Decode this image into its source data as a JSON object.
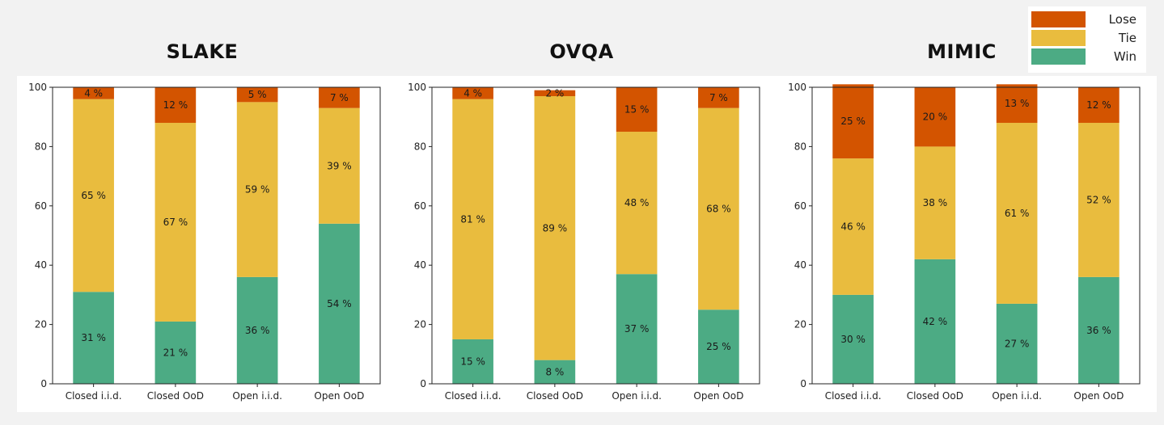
{
  "colors": {
    "lose": "#d35400",
    "tie": "#e9bc3e",
    "win": "#4cab84"
  },
  "legend": {
    "items": [
      {
        "key": "lose",
        "label": "Lose"
      },
      {
        "key": "tie",
        "label": "Tie"
      },
      {
        "key": "win",
        "label": "Win"
      }
    ]
  },
  "chart_data": [
    {
      "type": "bar",
      "stacked": true,
      "title": "SLAKE",
      "categories": [
        "Closed i.i.d.",
        "Closed OoD",
        "Open i.i.d.",
        "Open OoD"
      ],
      "ylim": [
        0,
        100
      ],
      "yticks": [
        0,
        20,
        40,
        60,
        80,
        100
      ],
      "series": [
        {
          "name": "Win",
          "values": [
            31,
            21,
            36,
            54
          ]
        },
        {
          "name": "Tie",
          "values": [
            65,
            67,
            59,
            39
          ]
        },
        {
          "name": "Lose",
          "values": [
            4,
            12,
            5,
            7
          ]
        }
      ]
    },
    {
      "type": "bar",
      "stacked": true,
      "title": "OVQA",
      "categories": [
        "Closed i.i.d.",
        "Closed OoD",
        "Open i.i.d.",
        "Open OoD"
      ],
      "ylim": [
        0,
        100
      ],
      "yticks": [
        0,
        20,
        40,
        60,
        80,
        100
      ],
      "series": [
        {
          "name": "Win",
          "values": [
            15,
            8,
            37,
            25
          ]
        },
        {
          "name": "Tie",
          "values": [
            81,
            89,
            48,
            68
          ]
        },
        {
          "name": "Lose",
          "values": [
            4,
            2,
            15,
            7
          ]
        }
      ]
    },
    {
      "type": "bar",
      "stacked": true,
      "title": "MIMIC",
      "categories": [
        "Closed i.i.d.",
        "Closed OoD",
        "Open i.i.d.",
        "Open OoD"
      ],
      "ylim": [
        0,
        100
      ],
      "yticks": [
        0,
        20,
        40,
        60,
        80,
        100
      ],
      "series": [
        {
          "name": "Win",
          "values": [
            30,
            42,
            27,
            36
          ]
        },
        {
          "name": "Tie",
          "values": [
            46,
            38,
            61,
            52
          ]
        },
        {
          "name": "Lose",
          "values": [
            25,
            20,
            13,
            12
          ]
        }
      ]
    }
  ]
}
